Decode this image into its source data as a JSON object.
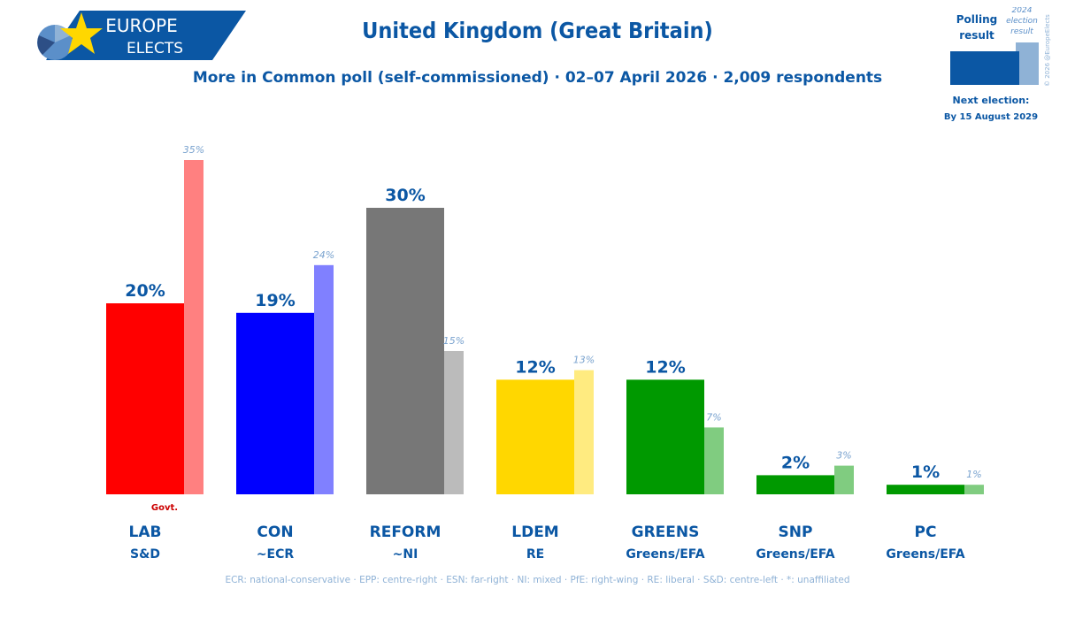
{
  "brand": {
    "line1": "EUROPE",
    "line2": "ELECTS"
  },
  "header": {
    "title": "United Kingdom (Great Britain)",
    "subtitle": "More in Common poll (self-commissioned) · 02–07 April 2026 · 2,009 respondents"
  },
  "legend": {
    "polling_label_1": "Polling",
    "polling_label_2": "result",
    "prev_label_1": "2024",
    "prev_label_2": "election",
    "prev_label_3": "result",
    "copyright": "© 2026 @EuropeElects",
    "next_election_label": "Next election:",
    "next_election_date": "By 15 August 2029"
  },
  "footnote": "ECR: national-conservative · EPP: centre-right · ESN: far-right · NI: mixed · PfE: right-wing · RE: liberal · S&D: centre-left · *: unaffiliated",
  "chart_data": {
    "type": "bar",
    "categories": [
      "LAB",
      "CON",
      "REFORM",
      "LDEM",
      "GREENS",
      "SNP",
      "PC"
    ],
    "groups": [
      "S&D",
      "~ECR",
      "~NI",
      "RE",
      "Greens/EFA",
      "Greens/EFA",
      "Greens/EFA"
    ],
    "annotations": [
      "Govt.",
      "",
      "",
      "",
      "",
      "",
      ""
    ],
    "series": [
      {
        "values": [
          20,
          19,
          30,
          12,
          12,
          2,
          1
        ]
      },
      {
        "values": [
          35,
          24,
          15,
          13,
          7,
          3,
          1
        ]
      }
    ],
    "colors": [
      "#ff0000",
      "#0000ff",
      "#777777",
      "#ffd700",
      "#009900",
      "#009900",
      "#009900"
    ],
    "prev_colors": [
      "#ff8080",
      "#8080ff",
      "#bbbbbb",
      "#ffeb80",
      "#80cc80",
      "#80cc80",
      "#80cc80"
    ],
    "ylim": [
      0,
      38
    ],
    "grid": false
  }
}
